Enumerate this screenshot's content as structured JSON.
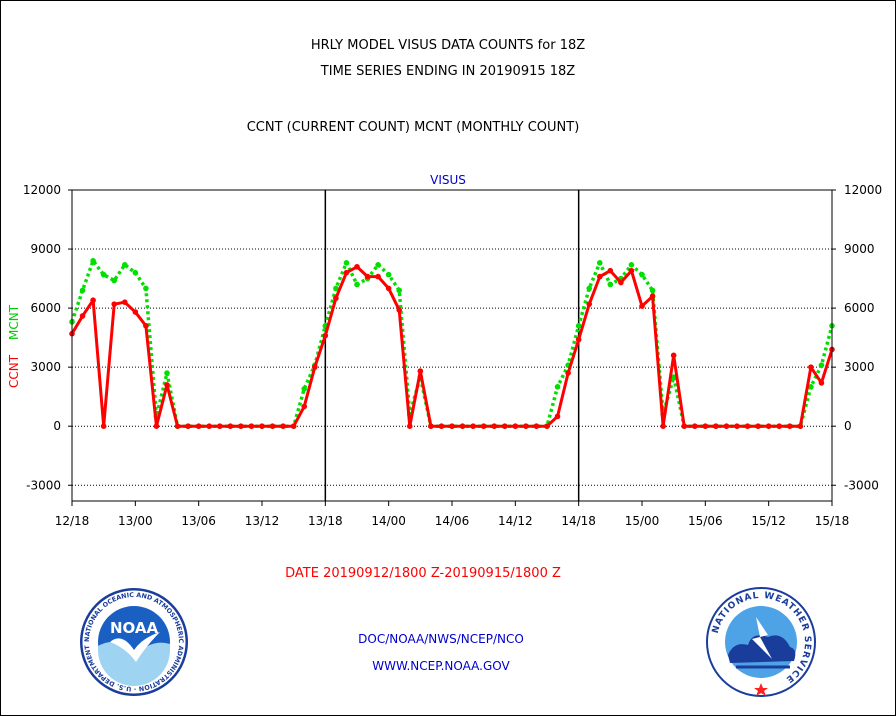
{
  "header": {
    "title1": "HRLY MODEL VISUS DATA COUNTS for 18Z",
    "title2": "TIME SERIES ENDING IN 20190915 18Z",
    "subtitle": "CCNT (CURRENT COUNT) MCNT (MONTHLY COUNT)"
  },
  "footer": {
    "date_range": "DATE 20190912/1800 Z-20190915/1800 Z",
    "org_line": "DOC/NOAA/NWS/NCEP/NCO",
    "website": "WWW.NCEP.NOAA.GOV"
  },
  "logos": {
    "noaa_text": "NOAA",
    "noaa_ring_text": "NATIONAL OCEANIC AND ATMOSPHERIC ADMINISTRATION · U.S. DEPARTMENT OF COMMERCE",
    "nws_ring_text": "NATIONAL WEATHER SERVICE"
  },
  "colors": {
    "ccnt": "#ff0000",
    "mcnt": "#00e000",
    "title_blue": "#0000cc",
    "date_red": "#ff0000"
  },
  "chart_data": {
    "type": "line",
    "title": "VISUS",
    "ylabel_left": [
      "CCNT",
      "MCNT"
    ],
    "ylim": [
      -3800,
      12000
    ],
    "yticks": [
      -3000,
      0,
      3000,
      6000,
      9000,
      12000
    ],
    "ytick_labels": [
      "-3000",
      "0",
      "3000",
      "6000",
      "9000",
      "12000"
    ],
    "xlim": [
      0,
      72
    ],
    "xticks": [
      0,
      6,
      12,
      18,
      24,
      30,
      36,
      42,
      48,
      54,
      60,
      66,
      72
    ],
    "xtick_labels": [
      "12/18",
      "13/00",
      "13/06",
      "13/12",
      "13/18",
      "14/00",
      "14/06",
      "14/12",
      "14/18",
      "15/00",
      "15/06",
      "15/12",
      "15/18"
    ],
    "day_separators": [
      24,
      48
    ],
    "grid": "horizontal dotted",
    "series": [
      {
        "name": "CCNT",
        "color": "#ff0000",
        "values": [
          4700,
          5600,
          6400,
          0,
          6200,
          6300,
          5800,
          5100,
          0,
          2100,
          0,
          0,
          0,
          0,
          0,
          0,
          0,
          0,
          0,
          0,
          0,
          0,
          1000,
          3000,
          4600,
          6500,
          7800,
          8100,
          7600,
          7600,
          7000,
          5900,
          0,
          2800,
          0,
          0,
          0,
          0,
          0,
          0,
          0,
          0,
          0,
          0,
          0,
          0,
          500,
          2700,
          4400,
          6200,
          7600,
          7900,
          7300,
          7900,
          6100,
          6600,
          0,
          3600,
          0,
          0,
          0,
          0,
          0,
          0,
          0,
          0,
          0,
          0,
          0,
          0,
          3000,
          2200,
          3900
        ]
      },
      {
        "name": "MCNT",
        "color": "#00e000",
        "values": [
          5300,
          6900,
          8400,
          7700,
          7400,
          8200,
          7800,
          7000,
          500,
          2700,
          0,
          0,
          0,
          0,
          0,
          0,
          0,
          0,
          0,
          0,
          0,
          0,
          1900,
          3100,
          5100,
          7000,
          8300,
          7200,
          7500,
          8200,
          7700,
          6900,
          600,
          2500,
          0,
          0,
          0,
          0,
          0,
          0,
          0,
          0,
          0,
          0,
          0,
          0,
          2000,
          3100,
          5100,
          7000,
          8300,
          7200,
          7500,
          8200,
          7700,
          6900,
          600,
          2500,
          0,
          0,
          0,
          0,
          0,
          0,
          0,
          0,
          0,
          0,
          0,
          0,
          2000,
          3100,
          5100
        ]
      }
    ]
  }
}
